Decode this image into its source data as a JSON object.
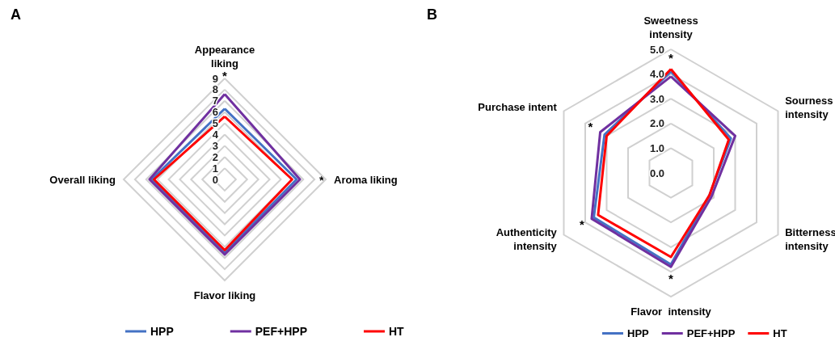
{
  "chart_data": [
    {
      "type": "radar",
      "title": "A",
      "categories": [
        "Appearance\nliking",
        "Aroma liking",
        "Flavor liking",
        "Overall liking"
      ],
      "series": [
        {
          "name": "HPP",
          "color": "#4472c4",
          "values": [
            6.3,
            6.4,
            6.5,
            6.5
          ]
        },
        {
          "name": "PEF+HPP",
          "color": "#7030a0",
          "values": [
            7.6,
            6.7,
            6.7,
            6.7
          ]
        },
        {
          "name": "HT",
          "color": "#ff0000",
          "values": [
            5.6,
            6.0,
            6.3,
            6.3
          ]
        }
      ],
      "ylim": [
        0,
        9
      ],
      "yticks": [
        0,
        1,
        2,
        3,
        4,
        5,
        6,
        7,
        8,
        9
      ],
      "grid": true,
      "legend": "bottom",
      "marker": "none",
      "line_style": "solid",
      "annotations": [
        {
          "text": "*",
          "x": "Appearance\nliking"
        },
        {
          "text": "*",
          "x": "Aroma liking"
        }
      ]
    },
    {
      "type": "radar",
      "title": "B",
      "categories": [
        "Sweetness\nintensity",
        "Sourness\nintensity",
        "Bitterness\nintensity",
        "Flavor  intensity",
        "Authenticity\nintensity",
        "Purchase intent"
      ],
      "series": [
        {
          "name": "HPP",
          "color": "#4472c4",
          "values": [
            4.1,
            2.8,
            1.8,
            3.7,
            3.6,
            3.1
          ]
        },
        {
          "name": "PEF+HPP",
          "color": "#7030a0",
          "values": [
            3.9,
            3.0,
            1.9,
            3.8,
            3.7,
            3.3
          ]
        },
        {
          "name": "HT",
          "color": "#ff0000",
          "values": [
            4.2,
            2.7,
            1.8,
            3.4,
            3.4,
            3.0
          ]
        }
      ],
      "ylim": [
        0,
        5
      ],
      "yticks": [
        {
          "value": 0,
          "label": "0.0"
        },
        {
          "value": 1,
          "label": "1.0"
        },
        {
          "value": 2,
          "label": "2.0"
        },
        {
          "value": 3,
          "label": "3.0"
        },
        {
          "value": 4,
          "label": "4.0"
        },
        {
          "value": 5,
          "label": "5.0"
        }
      ],
      "grid": true,
      "legend": "bottom",
      "marker": "none",
      "line_style": "solid",
      "annotations": [
        {
          "text": "*",
          "x": "Sweetness\nintensity"
        },
        {
          "text": "*",
          "x": "Flavor  intensity"
        },
        {
          "text": "*",
          "x": "Authenticity\nintensity"
        },
        {
          "text": "*",
          "x": "Purchase intent"
        }
      ]
    }
  ]
}
